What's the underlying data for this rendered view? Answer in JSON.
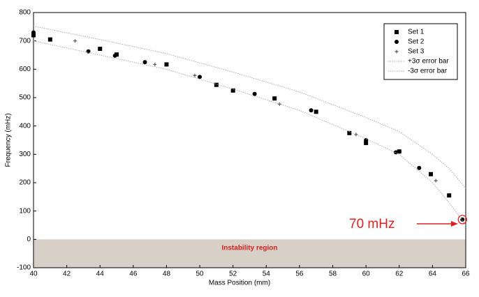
{
  "chart_data": {
    "type": "scatter",
    "x_label": "Mass Position (mm)",
    "y_label": "Frequency (mHz)",
    "xlim": [
      40,
      66
    ],
    "xticks": [
      40,
      42,
      44,
      46,
      48,
      50,
      52,
      54,
      56,
      58,
      60,
      62,
      64,
      66
    ],
    "ylim": [
      -100,
      800
    ],
    "yticks": [
      -100,
      0,
      100,
      200,
      300,
      400,
      500,
      600,
      700,
      800
    ],
    "legend": "upper right",
    "series": [
      {
        "name": "Set 1",
        "color": "#000000",
        "marker": "square",
        "x": [
          40,
          41,
          44,
          45,
          48,
          51,
          52,
          54.5,
          57,
          59,
          60,
          62,
          63.9,
          65
        ],
        "values": [
          720,
          705,
          672,
          652,
          617,
          545,
          525,
          497,
          450,
          375,
          340,
          310,
          230,
          155
        ]
      },
      {
        "name": "Set 2",
        "color": "#000000",
        "marker": "circle",
        "x": [
          40,
          43.3,
          44.9,
          46.7,
          50,
          53.3,
          56.7,
          60,
          61.8,
          63.2,
          65.8
        ],
        "values": [
          730,
          663,
          648,
          625,
          573,
          513,
          455,
          350,
          307,
          252,
          70
        ]
      },
      {
        "name": "Set 3",
        "color": "#555555",
        "marker": "plus",
        "x": [
          42.5,
          47.3,
          49.7,
          54.8,
          59.4,
          64.2
        ],
        "values": [
          700,
          617,
          578,
          477,
          370,
          207
        ]
      },
      {
        "name": "+3σ error bar",
        "color": "#aaaaaa",
        "marker": "dotted-line",
        "x": [
          40,
          44,
          48,
          52,
          56,
          60,
          62,
          64,
          65,
          66
        ],
        "values": [
          752,
          705,
          655,
          590,
          520,
          430,
          380,
          300,
          250,
          180
        ]
      },
      {
        "name": "-3σ error bar",
        "color": "#aaaaaa",
        "marker": "dotted-line",
        "x": [
          40,
          44,
          48,
          52,
          56,
          60,
          62,
          64,
          65,
          66
        ],
        "values": [
          700,
          650,
          600,
          530,
          455,
          355,
          300,
          200,
          130,
          50
        ]
      }
    ],
    "shaded_region": {
      "label": "Instability region",
      "y0": -100,
      "y1": 0,
      "color": "#d8d0c6",
      "label_color": "#d42020"
    },
    "annotation": {
      "text": "70 mHz",
      "x": 65.8,
      "y": 70,
      "color": "#e02020"
    }
  }
}
